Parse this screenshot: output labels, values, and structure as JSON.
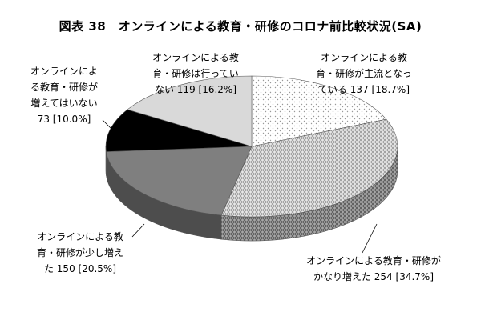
{
  "chart_data": {
    "type": "pie",
    "title": "図表 38　オンラインによる教育・研修のコロナ前比較状況(SA)",
    "slices": [
      {
        "lines": [
          "オンラインによる教",
          "育・研修が主流となっ",
          "ている 137 [18.7%]"
        ],
        "value": 137,
        "percent": 18.7,
        "fill": "#ffffff",
        "pattern": "dots"
      },
      {
        "lines": [
          "オンラインによる教育・研修が",
          "かなり増えた 254 [34.7%]"
        ],
        "value": 254,
        "percent": 34.7,
        "fill": "#d9d9d9",
        "pattern": "cross"
      },
      {
        "lines": [
          "オンラインによる教",
          "育・研修が少し増え",
          "た 150 [20.5%]"
        ],
        "value": 150,
        "percent": 20.5,
        "fill": "#7f7f7f",
        "pattern": "none"
      },
      {
        "lines": [
          "オンラインによ",
          "る教育・研修が",
          "増えてはいない",
          "73 [10.0%]"
        ],
        "value": 73,
        "percent": 10.0,
        "fill": "#000000",
        "pattern": "none"
      },
      {
        "lines": [
          "オンラインによる教",
          "育・研修は行ってい",
          "ない 119 [16.2%]"
        ],
        "value": 119,
        "percent": 16.2,
        "fill": "#d9d9d9",
        "pattern": "none"
      }
    ],
    "start_angle_deg": 0,
    "direction": "clockwise",
    "legend": "none",
    "style": "3d-pie"
  }
}
